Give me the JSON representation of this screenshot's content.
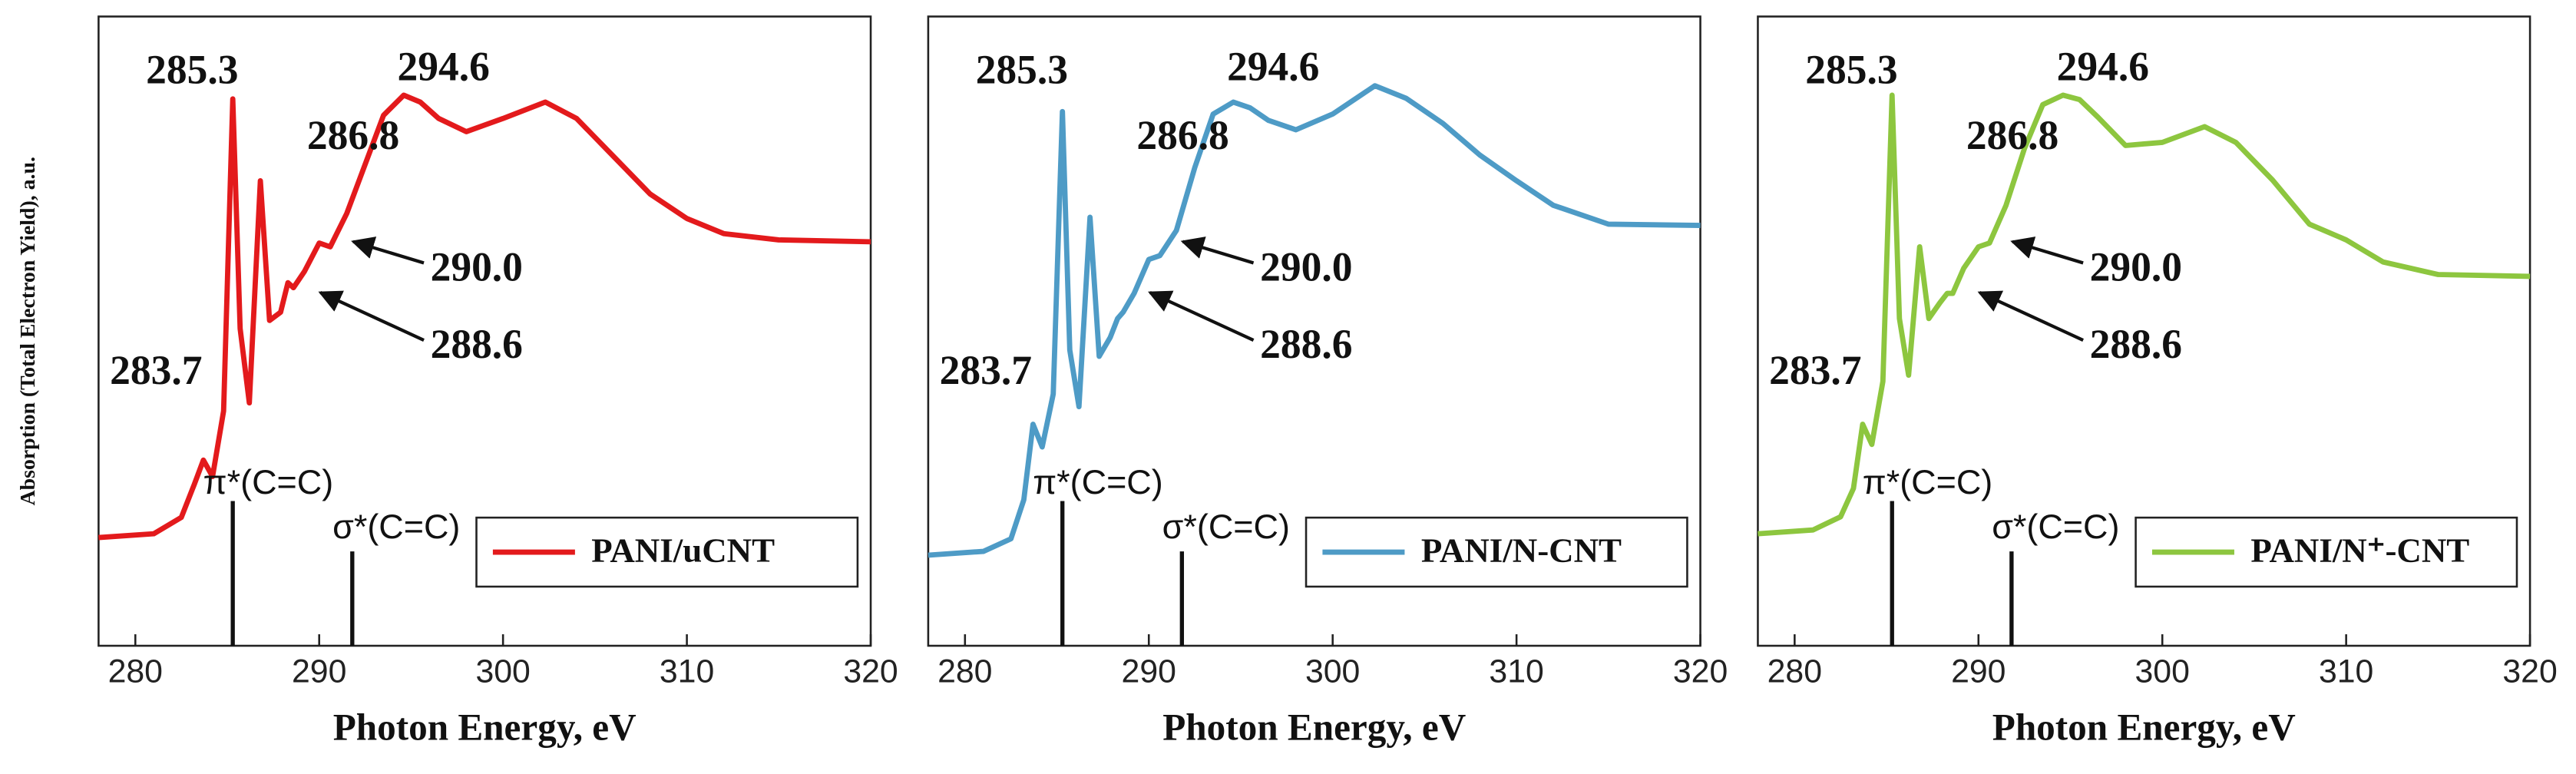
{
  "chart_data": [
    {
      "type": "line",
      "xlabel": "Photon Energy, eV",
      "ylabel": "Absorption (Total Electron Yield), a.u.",
      "xlim": [
        278,
        320
      ],
      "xticks": [
        280,
        290,
        300,
        310,
        320
      ],
      "ylim": [
        0,
        1
      ],
      "legend": "lower right",
      "x": [
        278,
        281,
        282.5,
        283.2,
        283.7,
        284.2,
        284.8,
        285.3,
        285.7,
        286.2,
        286.8,
        287.3,
        287.9,
        288.3,
        288.6,
        289.2,
        290,
        290.6,
        291.5,
        292.5,
        293.5,
        294.6,
        295.5,
        296.5,
        298,
        300,
        302.3,
        304,
        306,
        308,
        310,
        312,
        315,
        320
      ],
      "series": [
        {
          "name": "PANI/uCNT",
          "color": "#e31a1c",
          "values": [
            0.172,
            0.178,
            0.204,
            0.256,
            0.295,
            0.269,
            0.373,
            0.869,
            0.504,
            0.386,
            0.739,
            0.517,
            0.53,
            0.577,
            0.569,
            0.595,
            0.64,
            0.634,
            0.687,
            0.765,
            0.843,
            0.875,
            0.864,
            0.838,
            0.817,
            0.838,
            0.864,
            0.838,
            0.778,
            0.718,
            0.679,
            0.655,
            0.645,
            0.642
          ]
        }
      ],
      "annotations": [
        "285.3",
        "286.8",
        "294.6",
        "290.0",
        "288.6",
        "283.7"
      ],
      "transitions": [
        {
          "label": "π*(C=C)",
          "x": 285.3,
          "height": 0.23
        },
        {
          "label": "σ*(C=C)",
          "x": 291.8,
          "height": 0.15
        }
      ]
    },
    {
      "type": "line",
      "xlabel": "Photon Energy, eV",
      "xlim": [
        278,
        320
      ],
      "xticks": [
        280,
        290,
        300,
        310,
        320
      ],
      "ylim": [
        0,
        1
      ],
      "legend": "lower right",
      "x": [
        278,
        281,
        282.5,
        283.2,
        283.7,
        284.2,
        284.8,
        285.3,
        285.7,
        286.2,
        286.8,
        287.3,
        287.9,
        288.3,
        288.6,
        289.2,
        290,
        290.6,
        291.5,
        292.5,
        293.5,
        294.6,
        295.5,
        296.5,
        298,
        300,
        302.3,
        304,
        306,
        308,
        310,
        312,
        315,
        320
      ],
      "series": [
        {
          "name": "PANI/N-CNT",
          "color": "#4e9bc6",
          "values": [
            0.144,
            0.15,
            0.17,
            0.232,
            0.352,
            0.316,
            0.4,
            0.849,
            0.47,
            0.38,
            0.681,
            0.46,
            0.49,
            0.52,
            0.53,
            0.56,
            0.614,
            0.62,
            0.66,
            0.76,
            0.845,
            0.864,
            0.855,
            0.835,
            0.82,
            0.845,
            0.89,
            0.87,
            0.83,
            0.78,
            0.739,
            0.7,
            0.67,
            0.668
          ]
        }
      ],
      "annotations": [
        "285.3",
        "286.8",
        "294.6",
        "290.0",
        "288.6",
        "283.7"
      ],
      "transitions": [
        {
          "label": "π*(C=C)",
          "x": 285.3,
          "height": 0.23
        },
        {
          "label": "σ*(C=C)",
          "x": 291.8,
          "height": 0.15
        }
      ]
    },
    {
      "type": "line",
      "xlabel": "Photon Energy, eV",
      "xlim": [
        278,
        320
      ],
      "xticks": [
        280,
        290,
        300,
        310,
        320
      ],
      "ylim": [
        0,
        1
      ],
      "legend": "lower right",
      "x": [
        278,
        281,
        282.5,
        283.2,
        283.7,
        284.2,
        284.8,
        285.3,
        285.7,
        286.2,
        286.8,
        287.3,
        287.9,
        288.3,
        288.6,
        289.2,
        290,
        290.6,
        291.5,
        292.5,
        293.5,
        294.6,
        295.5,
        296.5,
        298,
        300,
        302.3,
        304,
        306,
        308,
        310,
        312,
        315,
        320
      ],
      "series": [
        {
          "name": "PANI/N⁺-CNT",
          "color": "#8dc63f",
          "values": [
            0.178,
            0.184,
            0.205,
            0.25,
            0.352,
            0.32,
            0.42,
            0.875,
            0.52,
            0.43,
            0.634,
            0.52,
            0.545,
            0.56,
            0.56,
            0.6,
            0.634,
            0.64,
            0.7,
            0.79,
            0.86,
            0.875,
            0.868,
            0.84,
            0.795,
            0.8,
            0.825,
            0.8,
            0.74,
            0.67,
            0.645,
            0.61,
            0.59,
            0.587
          ]
        }
      ],
      "annotations": [
        "285.3",
        "286.8",
        "294.6",
        "290.0",
        "288.6",
        "283.7"
      ],
      "transitions": [
        {
          "label": "π*(C=C)",
          "x": 285.3,
          "height": 0.23
        },
        {
          "label": "σ*(C=C)",
          "x": 291.8,
          "height": 0.15
        }
      ]
    }
  ]
}
